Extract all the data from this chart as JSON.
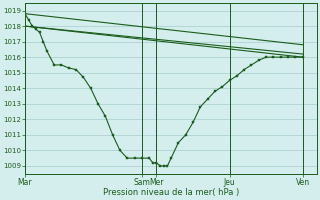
{
  "background_color": "#d4eeee",
  "grid_color": "#a8cccc",
  "line_color": "#1a5c1a",
  "title": "",
  "xlabel": "Pression niveau de la mer( hPa )",
  "ylim": [
    1008.5,
    1019.5
  ],
  "yticks": [
    1009,
    1010,
    1011,
    1012,
    1013,
    1014,
    1015,
    1016,
    1017,
    1018,
    1019
  ],
  "xlim": [
    0,
    480
  ],
  "xtick_positions": [
    0,
    192,
    216,
    336,
    456
  ],
  "xtick_labels": [
    "Mar",
    "Sam",
    "Mer",
    "Jeu",
    "Ven"
  ],
  "vline_positions": [
    0,
    192,
    216,
    336,
    456
  ],
  "series_main": {
    "x": [
      0,
      6,
      12,
      18,
      24,
      30,
      36,
      48,
      60,
      72,
      84,
      96,
      108,
      120,
      132,
      144,
      156,
      168,
      180,
      192,
      204,
      210,
      216,
      222,
      228,
      234,
      240,
      252,
      264,
      276,
      288,
      300,
      312,
      324,
      336,
      348,
      360,
      372,
      384,
      396,
      408,
      420,
      432,
      444,
      456
    ],
    "y": [
      1018.8,
      1018.4,
      1018.0,
      1017.8,
      1017.6,
      1017.0,
      1016.4,
      1015.5,
      1015.5,
      1015.3,
      1015.2,
      1014.7,
      1014.0,
      1013.0,
      1012.2,
      1011.0,
      1010.0,
      1009.5,
      1009.5,
      1009.5,
      1009.5,
      1009.2,
      1009.2,
      1009.0,
      1009.0,
      1009.0,
      1009.5,
      1010.5,
      1011.0,
      1011.8,
      1012.8,
      1013.3,
      1013.8,
      1014.1,
      1014.5,
      1014.8,
      1015.2,
      1015.5,
      1015.8,
      1016.0,
      1016.0,
      1016.0,
      1016.0,
      1016.0,
      1016.0
    ]
  },
  "series_straight1": {
    "x": [
      0,
      456
    ],
    "y": [
      1018.8,
      1016.0
    ]
  },
  "series_straight2": {
    "x": [
      0,
      456
    ],
    "y": [
      1018.0,
      1016.0
    ]
  },
  "series_straight3": {
    "x": [
      0,
      456
    ],
    "y": [
      1018.0,
      1016.0
    ]
  }
}
